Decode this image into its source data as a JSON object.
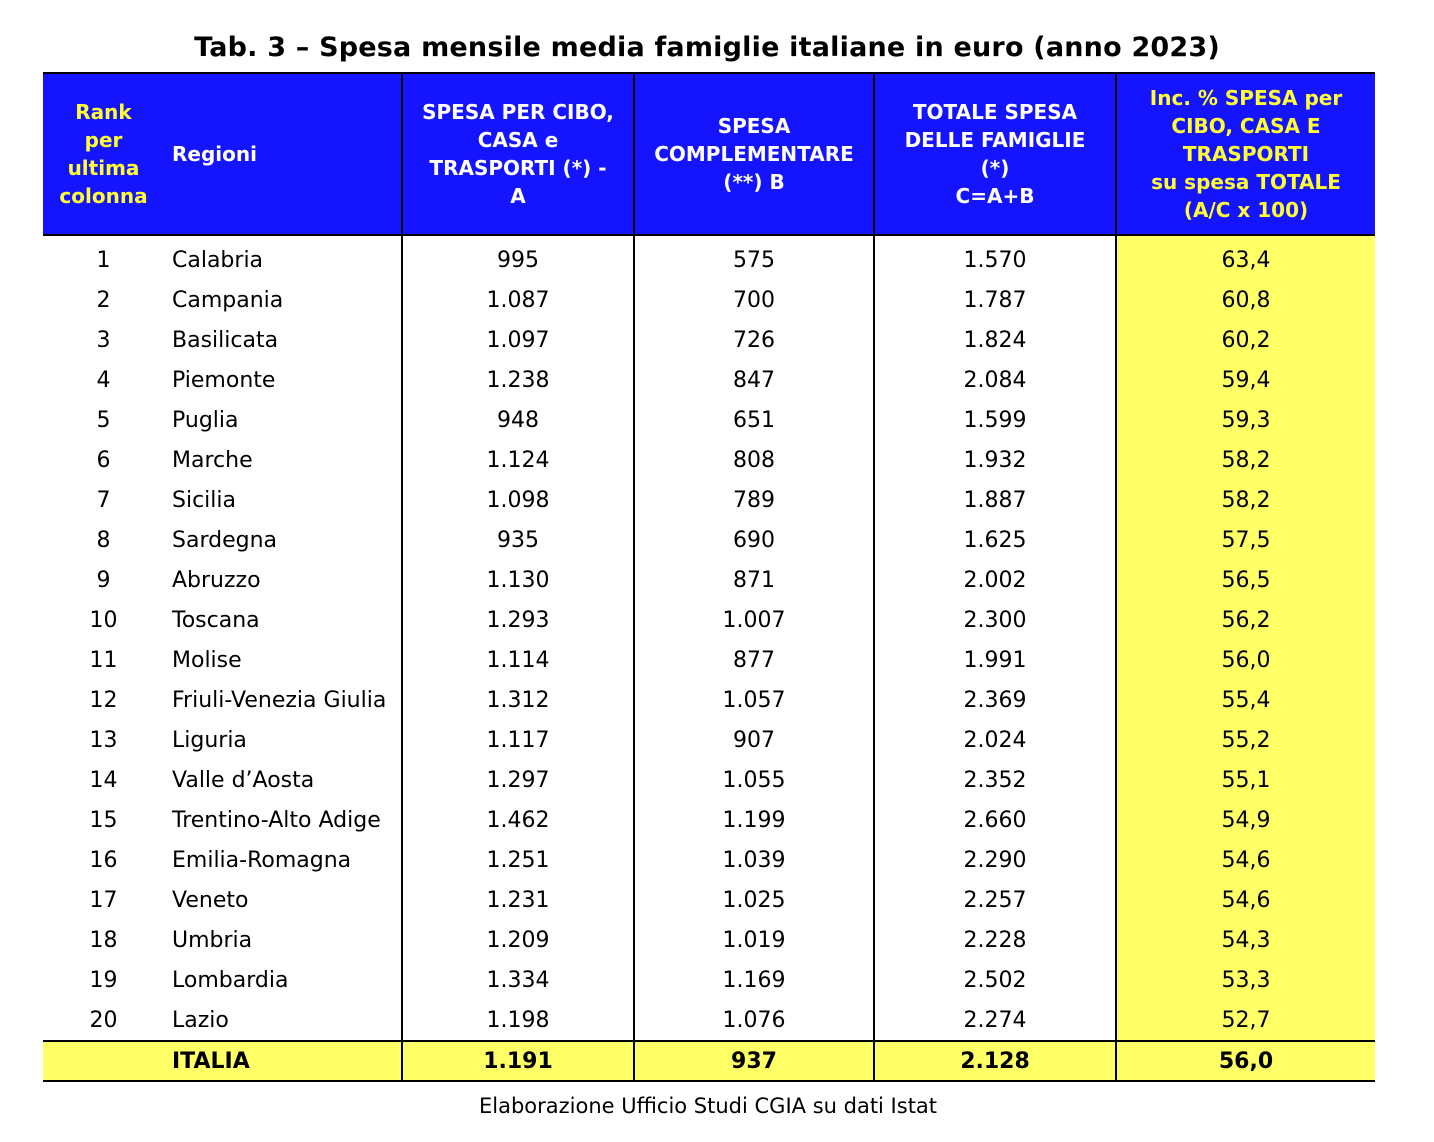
{
  "title": "Tab. 3 – Spesa mensile media famiglie italiane in euro (anno 2023)",
  "headers": {
    "rank": [
      "Rank",
      "per",
      "ultima",
      "colonna"
    ],
    "regioni": "Regioni",
    "spesa_a": [
      "SPESA PER CIBO,",
      "CASA e",
      "TRASPORTI (*) -",
      "A"
    ],
    "spesa_b": [
      "SPESA",
      "COMPLEMENTARE",
      "(**) B"
    ],
    "totale": [
      "TOTALE SPESA",
      "DELLE FAMIGLIE",
      "(*)",
      "C=A+B"
    ],
    "incidenza": [
      "Inc. % SPESA per",
      "CIBO, CASA E",
      "TRASPORTI",
      "su spesa TOTALE",
      "(A/C x 100)"
    ]
  },
  "colors": {
    "header_bg": "#1414ff",
    "header_text": "#ffffff",
    "header_accent": "#ffff33",
    "highlight": "#ffff66"
  },
  "rows": [
    {
      "rank": "1",
      "region": "Calabria",
      "a": "995",
      "b": "575",
      "total": "1.570",
      "inc": "63,4"
    },
    {
      "rank": "2",
      "region": "Campania",
      "a": "1.087",
      "b": "700",
      "total": "1.787",
      "inc": "60,8"
    },
    {
      "rank": "3",
      "region": "Basilicata",
      "a": "1.097",
      "b": "726",
      "total": "1.824",
      "inc": "60,2"
    },
    {
      "rank": "4",
      "region": "Piemonte",
      "a": "1.238",
      "b": "847",
      "total": "2.084",
      "inc": "59,4"
    },
    {
      "rank": "5",
      "region": "Puglia",
      "a": "948",
      "b": "651",
      "total": "1.599",
      "inc": "59,3"
    },
    {
      "rank": "6",
      "region": "Marche",
      "a": "1.124",
      "b": "808",
      "total": "1.932",
      "inc": "58,2"
    },
    {
      "rank": "7",
      "region": "Sicilia",
      "a": "1.098",
      "b": "789",
      "total": "1.887",
      "inc": "58,2"
    },
    {
      "rank": "8",
      "region": "Sardegna",
      "a": "935",
      "b": "690",
      "total": "1.625",
      "inc": "57,5"
    },
    {
      "rank": "9",
      "region": "Abruzzo",
      "a": "1.130",
      "b": "871",
      "total": "2.002",
      "inc": "56,5"
    },
    {
      "rank": "10",
      "region": "Toscana",
      "a": "1.293",
      "b": "1.007",
      "total": "2.300",
      "inc": "56,2"
    },
    {
      "rank": "11",
      "region": "Molise",
      "a": "1.114",
      "b": "877",
      "total": "1.991",
      "inc": "56,0"
    },
    {
      "rank": "12",
      "region": "Friuli-Venezia Giulia",
      "a": "1.312",
      "b": "1.057",
      "total": "2.369",
      "inc": "55,4"
    },
    {
      "rank": "13",
      "region": "Liguria",
      "a": "1.117",
      "b": "907",
      "total": "2.024",
      "inc": "55,2"
    },
    {
      "rank": "14",
      "region": "Valle d’Aosta",
      "a": "1.297",
      "b": "1.055",
      "total": "2.352",
      "inc": "55,1"
    },
    {
      "rank": "15",
      "region": "Trentino-Alto Adige",
      "a": "1.462",
      "b": "1.199",
      "total": "2.660",
      "inc": "54,9"
    },
    {
      "rank": "16",
      "region": "Emilia-Romagna",
      "a": "1.251",
      "b": "1.039",
      "total": "2.290",
      "inc": "54,6"
    },
    {
      "rank": "17",
      "region": "Veneto",
      "a": "1.231",
      "b": "1.025",
      "total": "2.257",
      "inc": "54,6"
    },
    {
      "rank": "18",
      "region": "Umbria",
      "a": "1.209",
      "b": "1.019",
      "total": "2.228",
      "inc": "54,3"
    },
    {
      "rank": "19",
      "region": "Lombardia",
      "a": "1.334",
      "b": "1.169",
      "total": "2.502",
      "inc": "53,3"
    },
    {
      "rank": "20",
      "region": "Lazio",
      "a": "1.198",
      "b": "1.076",
      "total": "2.274",
      "inc": "52,7"
    }
  ],
  "total_row": {
    "rank": "",
    "region": "ITALIA",
    "a": "1.191",
    "b": "937",
    "total": "2.128",
    "inc": "56,0"
  },
  "source": "Elaborazione Ufficio Studi CGIA su dati Istat"
}
